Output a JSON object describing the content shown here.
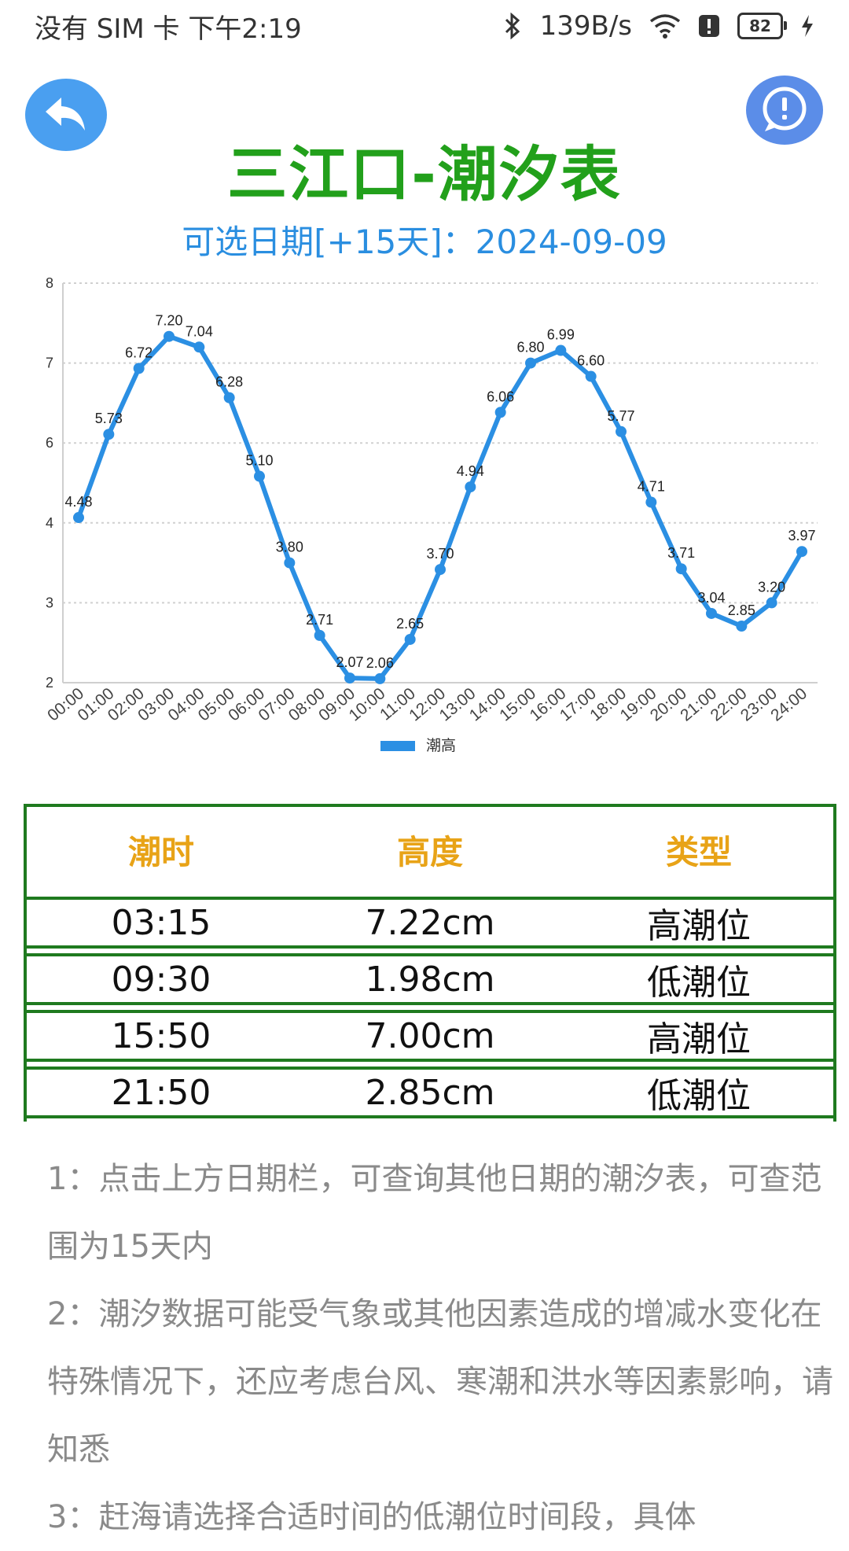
{
  "status": {
    "carrier": "没有 SIM 卡 下午2:19",
    "net_speed": "139B/s",
    "battery": "82"
  },
  "header": {
    "title": "三江口-潮汐表",
    "date_line": "可选日期[+15天]：2024-09-09"
  },
  "chart_data": {
    "type": "line",
    "x": [
      "00:00",
      "01:00",
      "02:00",
      "03:00",
      "04:00",
      "05:00",
      "06:00",
      "07:00",
      "08:00",
      "09:00",
      "10:00",
      "11:00",
      "12:00",
      "13:00",
      "14:00",
      "15:00",
      "16:00",
      "17:00",
      "18:00",
      "19:00",
      "20:00",
      "21:00",
      "22:00",
      "23:00",
      "24:00"
    ],
    "series": [
      {
        "name": "潮高",
        "values": [
          4.48,
          5.73,
          6.72,
          7.2,
          7.04,
          6.28,
          5.1,
          3.8,
          2.71,
          2.07,
          2.06,
          2.65,
          3.7,
          4.94,
          6.06,
          6.8,
          6.99,
          6.6,
          5.77,
          4.71,
          3.71,
          3.04,
          2.85,
          3.2,
          3.97
        ]
      }
    ],
    "y_ticks": [
      "2",
      "3",
      "4",
      "6",
      "7",
      "8"
    ],
    "ylim": [
      2,
      8
    ],
    "grid": true,
    "legend": "bottom-center",
    "color": "#2b8fe3"
  },
  "table": {
    "headers": [
      "潮时",
      "高度",
      "类型"
    ],
    "rows": [
      [
        "03:15",
        "7.22cm",
        "高潮位"
      ],
      [
        "09:30",
        "1.98cm",
        "低潮位"
      ],
      [
        "15:50",
        "7.00cm",
        "高潮位"
      ],
      [
        "21:50",
        "2.85cm",
        "低潮位"
      ]
    ]
  },
  "notes": [
    "1：点击上方日期栏，可查询其他日期的潮汐表，可查范围为15天内",
    "2：潮汐数据可能受气象或其他因素造成的增减水变化在特殊情况下，还应考虑台风、寒潮和洪水等因素影响，请知悉",
    "3：赶海请选择合适时间的低潮位时间段，具体"
  ]
}
